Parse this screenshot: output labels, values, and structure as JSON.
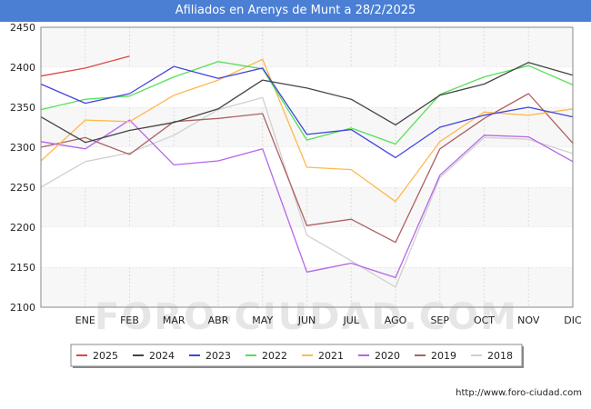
{
  "title": "Afiliados en Arenys de Munt a 28/2/2025",
  "watermark": "FORO-CIUDAD.COM",
  "footer_url": "http://www.foro-ciudad.com",
  "chart_data": {
    "type": "line",
    "title": "Afiliados en Arenys de Munt a 28/2/2025",
    "xlabel": "",
    "ylabel": "",
    "categories": [
      "",
      "ENE",
      "FEB",
      "MAR",
      "ABR",
      "MAY",
      "JUN",
      "JUL",
      "AGO",
      "SEP",
      "OCT",
      "NOV",
      "DIC"
    ],
    "ylim": [
      2100,
      2450
    ],
    "yticks": [
      2100,
      2150,
      2200,
      2250,
      2300,
      2350,
      2400,
      2450
    ],
    "grid": true,
    "legend_position": "bottom",
    "series": [
      {
        "name": "2018",
        "color": "#d0d0d0",
        "values": [
          2250,
          2282,
          2293,
          2315,
          2347,
          2362,
          2190,
          2158,
          2125,
          2262,
          2312,
          2310,
          2292
        ]
      },
      {
        "name": "2019",
        "color": "#b06060",
        "values": [
          2300,
          2312,
          2291,
          2332,
          2336,
          2342,
          2202,
          2210,
          2181,
          2298,
          2336,
          2367,
          2305
        ]
      },
      {
        "name": "2020",
        "color": "#b566e8",
        "values": [
          2307,
          2298,
          2334,
          2278,
          2283,
          2298,
          2144,
          2155,
          2137,
          2265,
          2315,
          2313,
          2282
        ]
      },
      {
        "name": "2021",
        "color": "#ffb84d",
        "values": [
          2283,
          2334,
          2332,
          2365,
          2384,
          2410,
          2275,
          2272,
          2232,
          2307,
          2344,
          2340,
          2348
        ]
      },
      {
        "name": "2022",
        "color": "#55e055",
        "values": [
          2347,
          2360,
          2364,
          2388,
          2407,
          2398,
          2309,
          2324,
          2304,
          2366,
          2388,
          2402,
          2378
        ]
      },
      {
        "name": "2023",
        "color": "#4444dd",
        "values": [
          2379,
          2355,
          2367,
          2401,
          2386,
          2399,
          2316,
          2322,
          2287,
          2325,
          2340,
          2350,
          2338
        ]
      },
      {
        "name": "2024",
        "color": "#444444",
        "values": [
          2338,
          2306,
          2321,
          2331,
          2348,
          2384,
          2374,
          2360,
          2328,
          2365,
          2379,
          2406,
          2390
        ]
      },
      {
        "name": "2025",
        "color": "#e04545",
        "values": [
          2389,
          2399,
          2414,
          null,
          null,
          null,
          null,
          null,
          null,
          null,
          null,
          null,
          null
        ]
      }
    ],
    "legend_order": [
      "2025",
      "2024",
      "2023",
      "2022",
      "2021",
      "2020",
      "2019",
      "2018"
    ]
  }
}
